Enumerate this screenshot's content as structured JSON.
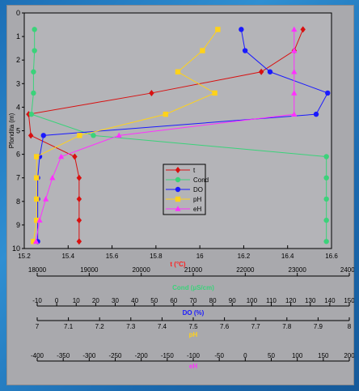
{
  "chart_data": {
    "type": "line",
    "title": "",
    "ylabel": "Pfondita (m)",
    "y_depth": [
      0.7,
      1.6,
      2.5,
      3.4,
      4.3,
      5.2,
      6.1,
      7.0,
      7.9,
      8.8,
      9.7
    ],
    "ylim": [
      0,
      10
    ],
    "yticks": [
      "0",
      "1",
      "2",
      "3",
      "4",
      "5",
      "6",
      "7",
      "8",
      "9",
      "10"
    ],
    "legend_position": "center-right",
    "grid": false,
    "axes": [
      {
        "key": "t",
        "label": "t (°C)",
        "color": "#ff2020",
        "min": 15.2,
        "max": 16.6,
        "ticks": [
          "15.2",
          "15.4",
          "15.6",
          "15.8",
          "16",
          "16.2",
          "16.4",
          "16.6"
        ],
        "tick_values": [
          15.2,
          15.4,
          15.6,
          15.8,
          16,
          16.2,
          16.4,
          16.6
        ]
      },
      {
        "key": "cond",
        "label": "Cond (µS/cm)",
        "color": "#3bd27a",
        "min": 18000,
        "max": 24000,
        "ticks": [
          "18000",
          "19000",
          "20000",
          "21000",
          "22000",
          "23000",
          "24000"
        ],
        "tick_values": [
          18000,
          19000,
          20000,
          21000,
          22000,
          23000,
          24000
        ]
      },
      {
        "key": "do",
        "label": "DO (%)",
        "color": "#1a1aff",
        "min": -10,
        "max": 150,
        "ticks": [
          "-10",
          "0",
          "10",
          "20",
          "30",
          "40",
          "50",
          "60",
          "70",
          "80",
          "90",
          "100",
          "110",
          "120",
          "130",
          "140",
          "150"
        ],
        "tick_values": [
          -10,
          0,
          10,
          20,
          30,
          40,
          50,
          60,
          70,
          80,
          90,
          100,
          110,
          120,
          130,
          140,
          150
        ]
      },
      {
        "key": "ph",
        "label": "pH",
        "color": "#ffd21a",
        "min": 7,
        "max": 8,
        "ticks": [
          "7",
          "7.1",
          "7.2",
          "7.3",
          "7.4",
          "7.5",
          "7.6",
          "7.7",
          "7.8",
          "7.9",
          "8"
        ],
        "tick_values": [
          7,
          7.1,
          7.2,
          7.3,
          7.4,
          7.5,
          7.6,
          7.7,
          7.8,
          7.9,
          8
        ]
      },
      {
        "key": "eh",
        "label": "eH",
        "color": "#ff30ff",
        "min": -400,
        "max": 200,
        "ticks": [
          "-400",
          "-350",
          "-300",
          "-250",
          "-200",
          "-150",
          "-100",
          "-50",
          "0",
          "50",
          "100",
          "150",
          "200"
        ],
        "tick_values": [
          -400,
          -350,
          -300,
          -250,
          -200,
          -150,
          -100,
          -50,
          0,
          50,
          100,
          150,
          200
        ]
      }
    ],
    "series": [
      {
        "name": "t",
        "axis": "t",
        "marker": "diamond",
        "color": "#d81010",
        "values": [
          16.47,
          16.43,
          16.28,
          15.78,
          15.22,
          15.23,
          15.43,
          15.45,
          15.45,
          15.45,
          15.45
        ]
      },
      {
        "name": "Cond",
        "axis": "cond",
        "marker": "circle",
        "color": "#3bd27a",
        "values": [
          18200,
          18200,
          18180,
          18180,
          18140,
          19350,
          23900,
          23900,
          23900,
          23900,
          23900
        ]
      },
      {
        "name": "DO",
        "axis": "do",
        "marker": "circle",
        "color": "#1a1aff",
        "values": [
          103,
          105,
          118,
          148,
          142,
          0,
          -2,
          -3,
          -3,
          -3,
          -3
        ]
      },
      {
        "name": "pH",
        "axis": "ph",
        "marker": "square",
        "color": "#ffd21a",
        "values": [
          7.63,
          7.58,
          7.5,
          7.62,
          7.46,
          7.18,
          7.04,
          7.04,
          7.04,
          7.04,
          7.03
        ]
      },
      {
        "name": "eH",
        "axis": "eh",
        "marker": "triangle",
        "color": "#ff30ff",
        "values": [
          127,
          127,
          127,
          127,
          127,
          -215,
          -328,
          -345,
          -358,
          -370,
          -377
        ]
      }
    ]
  }
}
